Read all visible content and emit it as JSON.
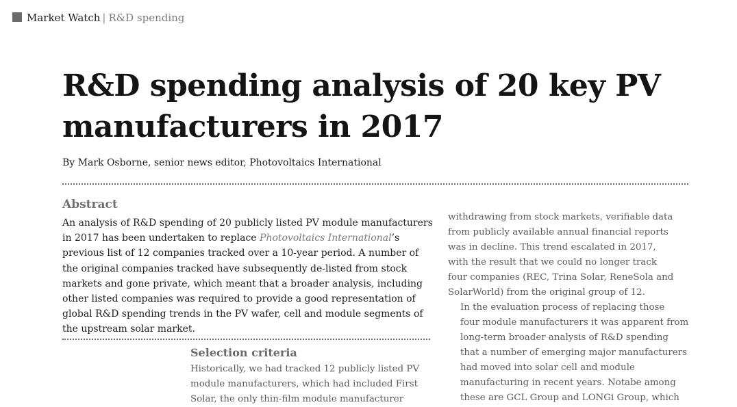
{
  "header": {
    "section": "Market Watch",
    "separator": "|",
    "subsection": "R&D spending"
  },
  "article": {
    "title": "R&D spending analysis of 20 key PV manufacturers in 2017",
    "byline": "By Mark Osborne, senior news editor, Photovoltaics International"
  },
  "abstract": {
    "heading": "Abstract",
    "text_before": "An analysis of R&D spending of 20 publicly listed PV module manufacturers in 2017 has been undertaken to replace ",
    "publication": "Photovoltaics International",
    "text_after": "’s previous list of 12 companies tracked over a 10-year period. A number of the original companies tracked have subsequently de-listed from stock markets and gone private, which meant that a broader analysis, including other listed companies was required to provide a good representation of global R&D spending trends in the PV wafer, cell and module segments of the upstream solar market."
  },
  "selection_criteria": {
    "heading": "Selection criteria",
    "lines": [
      "Historically, we had tracked 12 publicly listed PV",
      "module manufacturers, which had included First",
      "Solar, the only thin-film module manufacturer"
    ]
  },
  "right_column": {
    "paragraph1_lines": [
      "withdrawing from stock markets, verifiable data",
      "from publicly available annual financial reports",
      "was in decline. This trend escalated in 2017,",
      "with the result that we could no longer track",
      "four companies (REC, Trina Solar, ReneSola and",
      "SolarWorld) from the original group of 12."
    ],
    "paragraph2_lines": [
      "In the evaluation process of replacing those",
      "four module manufacturers it was apparent from",
      "long-term broader analysis of R&D spending",
      "that a number of emerging major manufacturers",
      "had moved into solar cell and module",
      "manufacturing in recent years. Notabe among",
      "these are GCL Group and LONGi Group, which"
    ]
  }
}
